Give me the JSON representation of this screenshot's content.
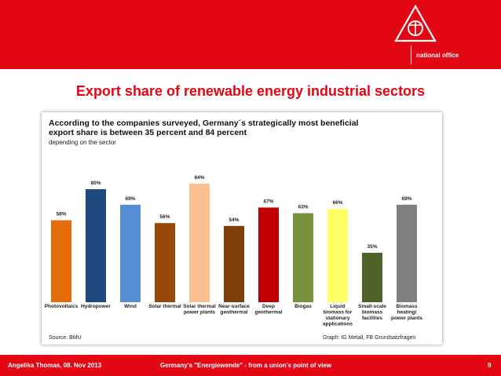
{
  "header": {
    "office_label": "national office"
  },
  "slide": {
    "title": "Export share of renewable energy industrial sectors"
  },
  "chart_data": {
    "type": "bar",
    "title_lines": [
      "According  to the companies surveyed, Germany´s strategically most beneficial",
      "export share is between 35 percent and 84 percent"
    ],
    "subtitle": "depending on the sector",
    "categories": [
      [
        "Photovoltaics"
      ],
      [
        "Hydropower"
      ],
      [
        "Wind"
      ],
      [
        "Solar thermal"
      ],
      [
        "Solar thermal",
        "power plants"
      ],
      [
        "Near-surface",
        "geothermal"
      ],
      [
        "Deep",
        "geothermal"
      ],
      [
        "Biogas"
      ],
      [
        "Liquid",
        "biomass for",
        "stationary",
        "applications"
      ],
      [
        "Small-scale",
        "biomass",
        "facilities"
      ],
      [
        "Biomass",
        "heating/",
        "power plants"
      ]
    ],
    "values": [
      58,
      80,
      69,
      56,
      84,
      54,
      67,
      63,
      66,
      35,
      69
    ],
    "value_labels": [
      "58%",
      "80%",
      "69%",
      "56%",
      "84%",
      "54%",
      "67%",
      "63%",
      "66%",
      "35%",
      "69%"
    ],
    "colors": [
      "#e46c0a",
      "#1f497d",
      "#558ed5",
      "#984807",
      "#fac090",
      "#7f3f0a",
      "#c00000",
      "#77933c",
      "#ffff66",
      "#4f6228",
      "#7f7f7f"
    ],
    "ylim": [
      0,
      100
    ],
    "grid": false,
    "legend": "none",
    "source": "Source: BMU",
    "credit": "Graph: IG Metall, FB Grundsatzfragen"
  },
  "footer": {
    "author_date": "Angelika Thomas, 08. Nov 2013",
    "talk_title": "Germany's \"Energiewende\" - from a union's point of view",
    "page_number": "9"
  },
  "icons": {
    "logo": "ig-metall-logo"
  }
}
